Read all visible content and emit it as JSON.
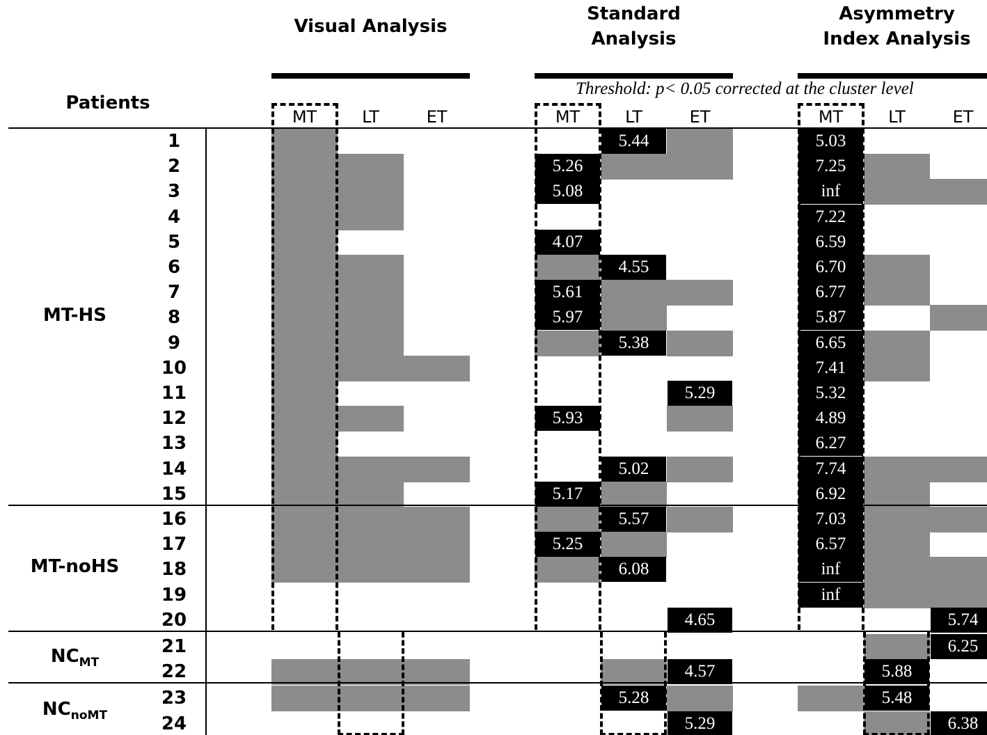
{
  "headers": {
    "patients": "Patients",
    "visual": "Visual Analysis",
    "standard_line1": "Standard",
    "standard_line2": "Analysis",
    "asym_line1": "Asymmetry",
    "asym_line2": "Index Analysis",
    "threshold": "Threshold: p< 0.05 corrected at the cluster level"
  },
  "sub_headers": [
    "MT",
    "LT",
    "ET"
  ],
  "groups": [
    {
      "label": "MT-HS",
      "sub": ""
    },
    {
      "label": "MT-noHS",
      "sub": ""
    },
    {
      "label": "NC",
      "sub": "MT"
    },
    {
      "label": "NC",
      "sub": "noMT"
    }
  ],
  "rows": [
    {
      "n": "1",
      "visual": [
        "g",
        "",
        ""
      ],
      "standard": [
        "",
        "5.44",
        "g"
      ],
      "asym": [
        "5.03",
        "",
        ""
      ]
    },
    {
      "n": "2",
      "visual": [
        "g",
        "g",
        ""
      ],
      "standard": [
        "5.26",
        "g",
        "g"
      ],
      "asym": [
        "7.25",
        "g",
        ""
      ]
    },
    {
      "n": "3",
      "visual": [
        "g",
        "g",
        ""
      ],
      "standard": [
        "5.08",
        "",
        ""
      ],
      "asym": [
        "inf",
        "g",
        "g"
      ]
    },
    {
      "n": "4",
      "visual": [
        "g",
        "g",
        ""
      ],
      "standard": [
        "",
        "",
        ""
      ],
      "asym": [
        "7.22",
        "",
        ""
      ]
    },
    {
      "n": "5",
      "visual": [
        "g",
        "",
        ""
      ],
      "standard": [
        "4.07",
        "",
        ""
      ],
      "asym": [
        "6.59",
        "",
        ""
      ]
    },
    {
      "n": "6",
      "visual": [
        "g",
        "g",
        ""
      ],
      "standard": [
        "g",
        "4.55",
        ""
      ],
      "asym": [
        "6.70",
        "g",
        ""
      ]
    },
    {
      "n": "7",
      "visual": [
        "g",
        "g",
        ""
      ],
      "standard": [
        "5.61",
        "g",
        "g"
      ],
      "asym": [
        "6.77",
        "g",
        ""
      ]
    },
    {
      "n": "8",
      "visual": [
        "g",
        "g",
        ""
      ],
      "standard": [
        "5.97",
        "g",
        ""
      ],
      "asym": [
        "5.87",
        "",
        "g"
      ]
    },
    {
      "n": "9",
      "visual": [
        "g",
        "g",
        ""
      ],
      "standard": [
        "g",
        "5.38",
        "g"
      ],
      "asym": [
        "6.65",
        "g",
        ""
      ]
    },
    {
      "n": "10",
      "visual": [
        "g",
        "g",
        "g"
      ],
      "standard": [
        "",
        "",
        ""
      ],
      "asym": [
        "7.41",
        "g",
        ""
      ]
    },
    {
      "n": "11",
      "visual": [
        "g",
        "",
        ""
      ],
      "standard": [
        "",
        "",
        "5.29"
      ],
      "asym": [
        "5.32",
        "",
        ""
      ]
    },
    {
      "n": "12",
      "visual": [
        "g",
        "g",
        ""
      ],
      "standard": [
        "5.93",
        "",
        "g"
      ],
      "asym": [
        "4.89",
        "",
        ""
      ]
    },
    {
      "n": "13",
      "visual": [
        "g",
        "",
        ""
      ],
      "standard": [
        "",
        "",
        ""
      ],
      "asym": [
        "6.27",
        "",
        ""
      ]
    },
    {
      "n": "14",
      "visual": [
        "g",
        "g",
        "g"
      ],
      "standard": [
        "",
        "5.02",
        "g"
      ],
      "asym": [
        "7.74",
        "g",
        "g"
      ]
    },
    {
      "n": "15",
      "visual": [
        "g",
        "g",
        ""
      ],
      "standard": [
        "5.17",
        "g",
        ""
      ],
      "asym": [
        "6.92",
        "g",
        ""
      ]
    },
    {
      "n": "16",
      "visual": [
        "g",
        "g",
        "g"
      ],
      "standard": [
        "g",
        "5.57",
        "g"
      ],
      "asym": [
        "7.03",
        "g",
        "g"
      ]
    },
    {
      "n": "17",
      "visual": [
        "g",
        "g",
        "g"
      ],
      "standard": [
        "5.25",
        "g",
        ""
      ],
      "asym": [
        "6.57",
        "g",
        ""
      ]
    },
    {
      "n": "18",
      "visual": [
        "g",
        "g",
        "g"
      ],
      "standard": [
        "g",
        "6.08",
        ""
      ],
      "asym": [
        "inf",
        "g",
        "g"
      ]
    },
    {
      "n": "19",
      "visual": [
        "",
        "",
        ""
      ],
      "standard": [
        "",
        "",
        ""
      ],
      "asym": [
        "inf",
        "g",
        "g"
      ]
    },
    {
      "n": "20",
      "visual": [
        "",
        "",
        ""
      ],
      "standard": [
        "",
        "",
        "4.65"
      ],
      "asym": [
        "",
        "",
        "5.74"
      ]
    },
    {
      "n": "21",
      "visual": [
        "",
        "",
        ""
      ],
      "standard": [
        "",
        "",
        ""
      ],
      "asym": [
        "",
        "g",
        "6.25"
      ]
    },
    {
      "n": "22",
      "visual": [
        "g",
        "g",
        "g"
      ],
      "standard": [
        "",
        "g",
        "4.57"
      ],
      "asym": [
        "",
        "5.88",
        ""
      ]
    },
    {
      "n": "23",
      "visual": [
        "g",
        "g",
        "g"
      ],
      "standard": [
        "",
        "5.28",
        "g"
      ],
      "asym": [
        "g",
        "5.48",
        ""
      ]
    },
    {
      "n": "24",
      "visual": [
        "",
        "",
        ""
      ],
      "standard": [
        "",
        "",
        "5.29"
      ],
      "asym": [
        "",
        "g",
        "6.38"
      ]
    }
  ]
}
